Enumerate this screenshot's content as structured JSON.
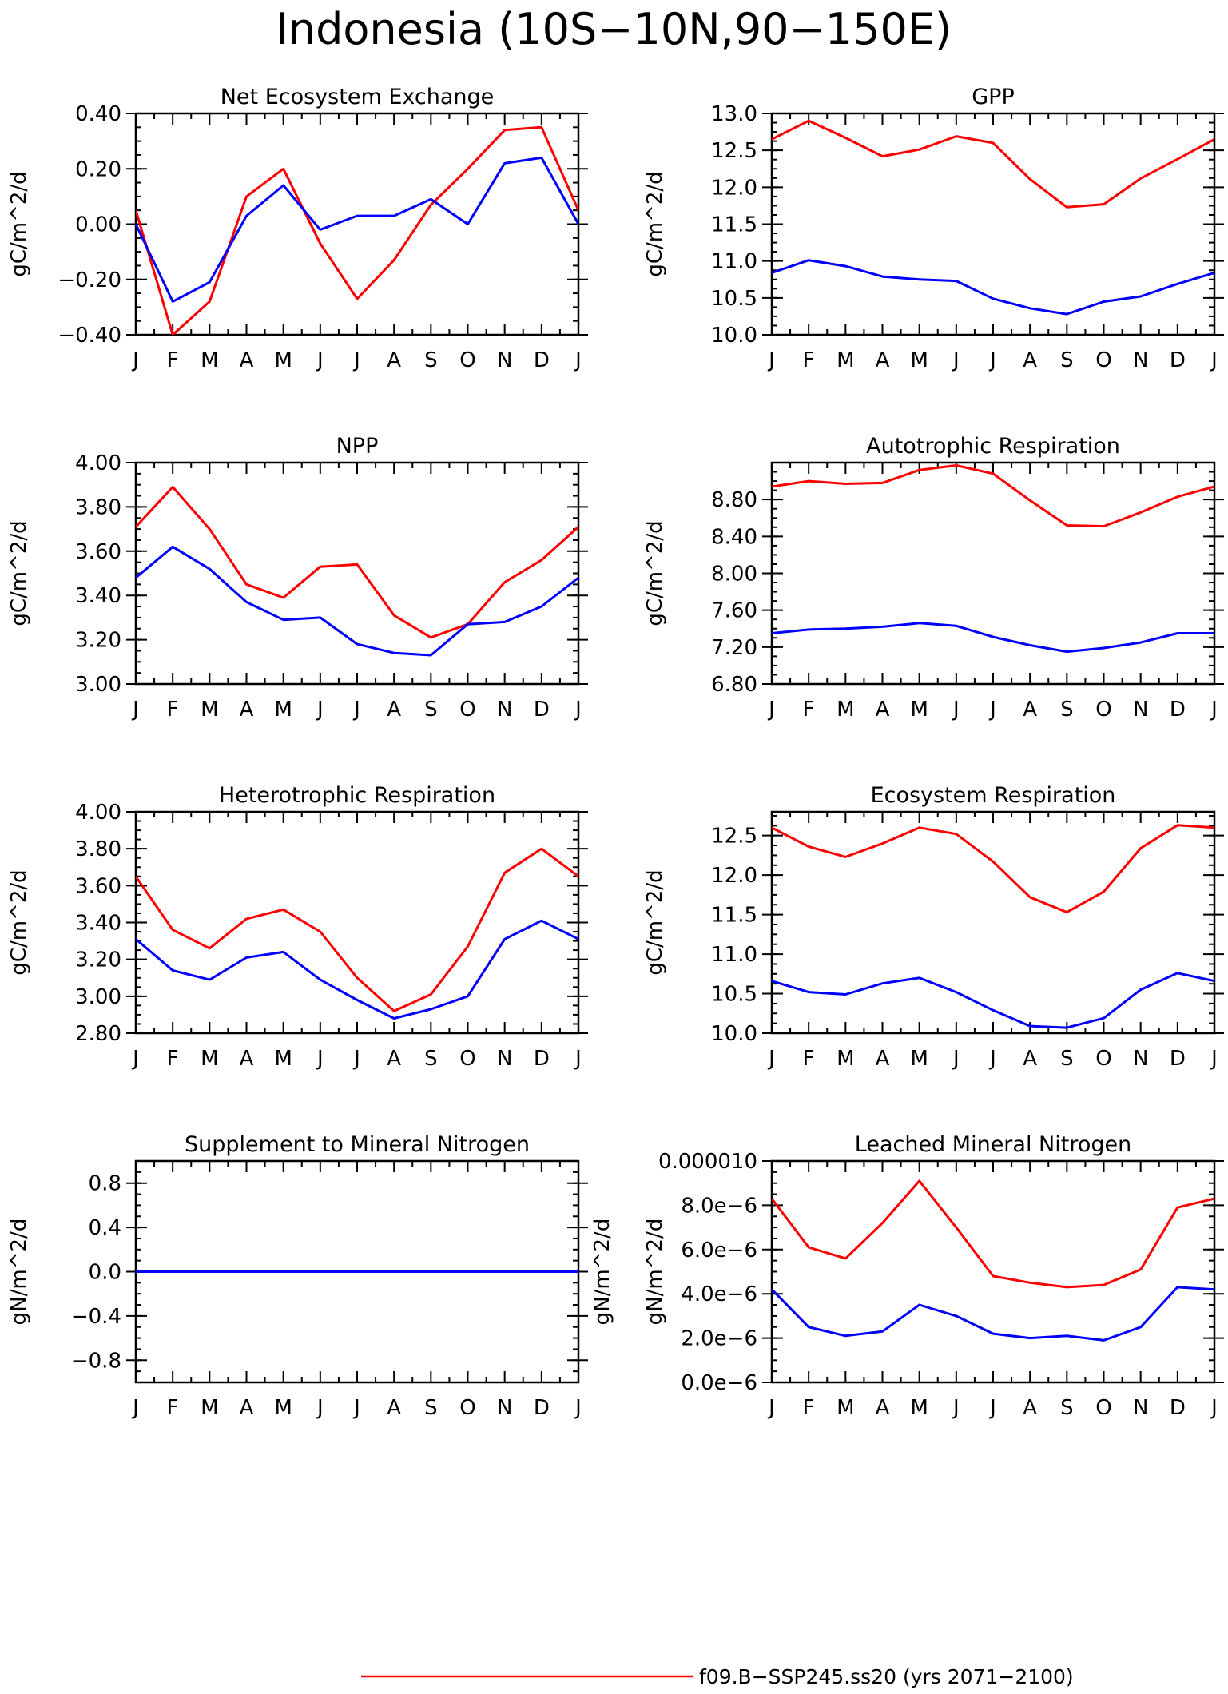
{
  "title": "Indonesia (10S−10N,90−150E)",
  "legend": [
    {
      "label": "f09.B−SSP245.ss20 (yrs 2071−2100)",
      "color": "#ff0000"
    }
  ],
  "colors": {
    "series_1": "#ff0000",
    "series_2": "#0000ff",
    "axes": "#000000"
  },
  "chart_data": [
    {
      "type": "line",
      "title": "Net Ecosystem Exchange",
      "ylabel": "gC/m^2/d",
      "categories": [
        "J",
        "F",
        "M",
        "A",
        "M",
        "J",
        "J",
        "A",
        "S",
        "O",
        "N",
        "D",
        "J"
      ],
      "ylim": [
        -0.4,
        0.4
      ],
      "yticks": [
        -0.4,
        -0.2,
        0.0,
        0.2,
        0.4
      ],
      "yticklabels": [
        "−0.40",
        "−0.20",
        "0.00",
        "0.20",
        "0.40"
      ],
      "series": [
        {
          "color": "#ff0000",
          "values": [
            0.05,
            -0.4,
            -0.28,
            0.1,
            0.2,
            -0.07,
            -0.27,
            -0.13,
            0.07,
            0.2,
            0.34,
            0.35,
            0.05
          ]
        },
        {
          "color": "#0000ff",
          "values": [
            0.0,
            -0.28,
            -0.21,
            0.03,
            0.14,
            -0.02,
            0.03,
            0.03,
            0.09,
            0.0,
            0.22,
            0.24,
            0.0
          ]
        }
      ]
    },
    {
      "type": "line",
      "title": "GPP",
      "ylabel": "gC/m^2/d",
      "categories": [
        "J",
        "F",
        "M",
        "A",
        "M",
        "J",
        "J",
        "A",
        "S",
        "O",
        "N",
        "D",
        "J"
      ],
      "ylim": [
        10.0,
        13.0
      ],
      "yticks": [
        10.0,
        10.5,
        11.0,
        11.5,
        12.0,
        12.5,
        13.0
      ],
      "yticklabels": [
        "10.0",
        "10.5",
        "11.0",
        "11.5",
        "12.0",
        "12.5",
        "13.0"
      ],
      "series": [
        {
          "color": "#ff0000",
          "values": [
            12.65,
            12.9,
            12.67,
            12.42,
            12.51,
            12.69,
            12.6,
            12.11,
            11.73,
            11.77,
            12.12,
            12.38,
            12.65
          ]
        },
        {
          "color": "#0000ff",
          "values": [
            10.84,
            11.01,
            10.93,
            10.79,
            10.75,
            10.73,
            10.49,
            10.36,
            10.28,
            10.45,
            10.52,
            10.69,
            10.84
          ]
        }
      ]
    },
    {
      "type": "line",
      "title": "NPP",
      "ylabel": "gC/m^2/d",
      "categories": [
        "J",
        "F",
        "M",
        "A",
        "M",
        "J",
        "J",
        "A",
        "S",
        "O",
        "N",
        "D",
        "J"
      ],
      "ylim": [
        3.0,
        4.0
      ],
      "yticks": [
        3.0,
        3.2,
        3.4,
        3.6,
        3.8,
        4.0
      ],
      "yticklabels": [
        "3.00",
        "3.20",
        "3.40",
        "3.60",
        "3.80",
        "4.00"
      ],
      "series": [
        {
          "color": "#ff0000",
          "values": [
            3.71,
            3.89,
            3.7,
            3.45,
            3.39,
            3.53,
            3.54,
            3.31,
            3.21,
            3.27,
            3.46,
            3.56,
            3.71
          ]
        },
        {
          "color": "#0000ff",
          "values": [
            3.48,
            3.62,
            3.52,
            3.37,
            3.29,
            3.3,
            3.18,
            3.14,
            3.13,
            3.27,
            3.28,
            3.35,
            3.48
          ]
        }
      ]
    },
    {
      "type": "line",
      "title": "Autotrophic Respiration",
      "ylabel": "gC/m^2/d",
      "categories": [
        "J",
        "F",
        "M",
        "A",
        "M",
        "J",
        "J",
        "A",
        "S",
        "O",
        "N",
        "D",
        "J"
      ],
      "ylim": [
        6.8,
        9.2
      ],
      "yticks": [
        6.8,
        7.2,
        7.6,
        8.0,
        8.4,
        8.8
      ],
      "yticklabels": [
        "6.80",
        "7.20",
        "7.60",
        "8.00",
        "8.40",
        "8.80"
      ],
      "series": [
        {
          "color": "#ff0000",
          "values": [
            8.94,
            9.0,
            8.97,
            8.98,
            9.12,
            9.17,
            9.08,
            8.79,
            8.52,
            8.51,
            8.66,
            8.83,
            8.94
          ]
        },
        {
          "color": "#0000ff",
          "values": [
            7.35,
            7.39,
            7.4,
            7.42,
            7.46,
            7.43,
            7.31,
            7.22,
            7.15,
            7.19,
            7.25,
            7.35,
            7.35
          ]
        }
      ]
    },
    {
      "type": "line",
      "title": "Heterotrophic Respiration",
      "ylabel": "gC/m^2/d",
      "categories": [
        "J",
        "F",
        "M",
        "A",
        "M",
        "J",
        "J",
        "A",
        "S",
        "O",
        "N",
        "D",
        "J"
      ],
      "ylim": [
        2.8,
        4.0
      ],
      "yticks": [
        2.8,
        3.0,
        3.2,
        3.4,
        3.6,
        3.8,
        4.0
      ],
      "yticklabels": [
        "2.80",
        "3.00",
        "3.20",
        "3.40",
        "3.60",
        "3.80",
        "4.00"
      ],
      "series": [
        {
          "color": "#ff0000",
          "values": [
            3.65,
            3.36,
            3.26,
            3.42,
            3.47,
            3.35,
            3.1,
            2.92,
            3.01,
            3.27,
            3.67,
            3.8,
            3.65
          ]
        },
        {
          "color": "#0000ff",
          "values": [
            3.31,
            3.14,
            3.09,
            3.21,
            3.24,
            3.09,
            2.98,
            2.88,
            2.93,
            3.0,
            3.31,
            3.41,
            3.31
          ]
        }
      ]
    },
    {
      "type": "line",
      "title": "Ecosystem Respiration",
      "ylabel": "gC/m^2/d",
      "categories": [
        "J",
        "F",
        "M",
        "A",
        "M",
        "J",
        "J",
        "A",
        "S",
        "O",
        "N",
        "D",
        "J"
      ],
      "ylim": [
        10.0,
        12.8
      ],
      "yticks": [
        10.0,
        10.5,
        11.0,
        11.5,
        12.0,
        12.5
      ],
      "yticklabels": [
        "10.0",
        "10.5",
        "11.0",
        "11.5",
        "12.0",
        "12.5"
      ],
      "series": [
        {
          "color": "#ff0000",
          "values": [
            12.6,
            12.36,
            12.23,
            12.4,
            12.6,
            12.52,
            12.17,
            11.72,
            11.53,
            11.79,
            12.34,
            12.63,
            12.6
          ]
        },
        {
          "color": "#0000ff",
          "values": [
            10.66,
            10.52,
            10.49,
            10.63,
            10.7,
            10.52,
            10.29,
            10.09,
            10.07,
            10.19,
            10.55,
            10.76,
            10.66
          ]
        }
      ]
    },
    {
      "type": "line",
      "title": "Supplement to Mineral Nitrogen",
      "ylabel": "gN/m^2/d",
      "ylabel_right": "gN/m^2/d",
      "categories": [
        "J",
        "F",
        "M",
        "A",
        "M",
        "J",
        "J",
        "A",
        "S",
        "O",
        "N",
        "D",
        "J"
      ],
      "ylim": [
        -1.0,
        1.0
      ],
      "yticks": [
        -0.8,
        -0.4,
        0.0,
        0.4,
        0.8
      ],
      "yticklabels": [
        "−0.8",
        "−0.4",
        "0.0",
        "0.4",
        "0.8"
      ],
      "series": [
        {
          "color": "#ff0000",
          "values": [
            0,
            0,
            0,
            0,
            0,
            0,
            0,
            0,
            0,
            0,
            0,
            0,
            0
          ]
        },
        {
          "color": "#0000ff",
          "values": [
            0,
            0,
            0,
            0,
            0,
            0,
            0,
            0,
            0,
            0,
            0,
            0,
            0
          ]
        }
      ]
    },
    {
      "type": "line",
      "title": "Leached Mineral Nitrogen",
      "ylabel": "gN/m^2/d",
      "categories": [
        "J",
        "F",
        "M",
        "A",
        "M",
        "J",
        "J",
        "A",
        "S",
        "O",
        "N",
        "D",
        "J"
      ],
      "ylim": [
        0.0,
        1e-05
      ],
      "yticks": [
        0.0,
        2e-06,
        4e-06,
        6e-06,
        8e-06,
        1e-05
      ],
      "yticklabels": [
        "0.0e−6",
        "2.0e−6",
        "4.0e−6",
        "6.0e−6",
        "8.0e−6",
        "0.000010"
      ],
      "series": [
        {
          "color": "#ff0000",
          "values": [
            8.3e-06,
            6.1e-06,
            5.6e-06,
            7.2e-06,
            9.1e-06,
            7e-06,
            4.8e-06,
            4.5e-06,
            4.3e-06,
            4.4e-06,
            5.1e-06,
            7.9e-06,
            8.3e-06
          ]
        },
        {
          "color": "#0000ff",
          "values": [
            4.2e-06,
            2.5e-06,
            2.1e-06,
            2.3e-06,
            3.5e-06,
            3e-06,
            2.2e-06,
            2e-06,
            2.1e-06,
            1.9e-06,
            2.5e-06,
            4.3e-06,
            4.2e-06
          ]
        }
      ]
    }
  ]
}
